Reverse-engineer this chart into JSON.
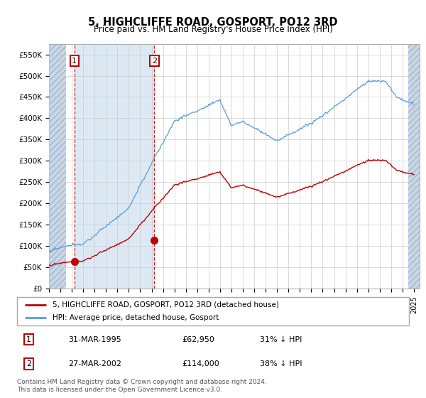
{
  "title": "5, HIGHCLIFFE ROAD, GOSPORT, PO12 3RD",
  "subtitle": "Price paid vs. HM Land Registry's House Price Index (HPI)",
  "ylim": [
    0,
    575000
  ],
  "yticks": [
    0,
    50000,
    100000,
    150000,
    200000,
    250000,
    300000,
    350000,
    400000,
    450000,
    500000,
    550000
  ],
  "ytick_labels": [
    "£0",
    "£50K",
    "£100K",
    "£150K",
    "£200K",
    "£250K",
    "£300K",
    "£350K",
    "£400K",
    "£450K",
    "£500K",
    "£550K"
  ],
  "hpi_color": "#5B9BD5",
  "price_color": "#C00000",
  "sale1_date": 1995.23,
  "sale1_price": 62950,
  "sale2_date": 2002.23,
  "sale2_price": 114000,
  "legend_line1": "5, HIGHCLIFFE ROAD, GOSPORT, PO12 3RD (detached house)",
  "legend_line2": "HPI: Average price, detached house, Gosport",
  "table_row1": [
    "1",
    "31-MAR-1995",
    "£62,950",
    "31% ↓ HPI"
  ],
  "table_row2": [
    "2",
    "27-MAR-2002",
    "£114,000",
    "38% ↓ HPI"
  ],
  "footnote": "Contains HM Land Registry data © Crown copyright and database right 2024.\nThis data is licensed under the Open Government Licence v3.0.",
  "hatch_color": "#c8d8ea",
  "shade_color": "#dce9f5",
  "grid_color": "#cccccc",
  "xmin": 1993.0,
  "xmax": 2025.5,
  "hatch_left_end": 1994.5,
  "hatch_right_start": 2024.5
}
